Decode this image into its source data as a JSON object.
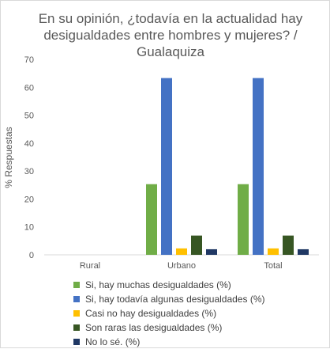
{
  "chart_data": {
    "type": "bar",
    "title": "En su opinión, ¿todavía en la actualidad hay desigualdades entre hombres y mujeres? / Gualaquiza",
    "title_lines": [
      "En su opinión, ¿todavía en la actualidad hay",
      "desigualdades entre hombres y mujeres? /",
      "Gualaquiza"
    ],
    "ylabel": "% Respuestas",
    "xlabel": "",
    "ylim": [
      0,
      70
    ],
    "yticks": [
      0,
      10,
      20,
      30,
      40,
      50,
      60,
      70
    ],
    "categories": [
      "Rural",
      "Urbano",
      "Total"
    ],
    "grid": false,
    "legend_position": "bottom",
    "series": [
      {
        "name": "Si, hay muchas desigualdades (%)",
        "color": "#70ad47",
        "values": [
          0,
          25.3,
          25.3
        ]
      },
      {
        "name": "Si, hay todavía algunas desigualdades (%)",
        "color": "#4472c4",
        "values": [
          0,
          63.3,
          63.3
        ]
      },
      {
        "name": "Casi no hay desigualdades (%)",
        "color": "#ffc000",
        "values": [
          0,
          2.3,
          2.3
        ]
      },
      {
        "name": "Son raras las desigualdades (%)",
        "color": "#375623",
        "values": [
          0,
          6.9,
          6.9
        ]
      },
      {
        "name": "No lo sé. (%)",
        "color": "#203864",
        "values": [
          0,
          2.0,
          2.0
        ]
      }
    ]
  }
}
